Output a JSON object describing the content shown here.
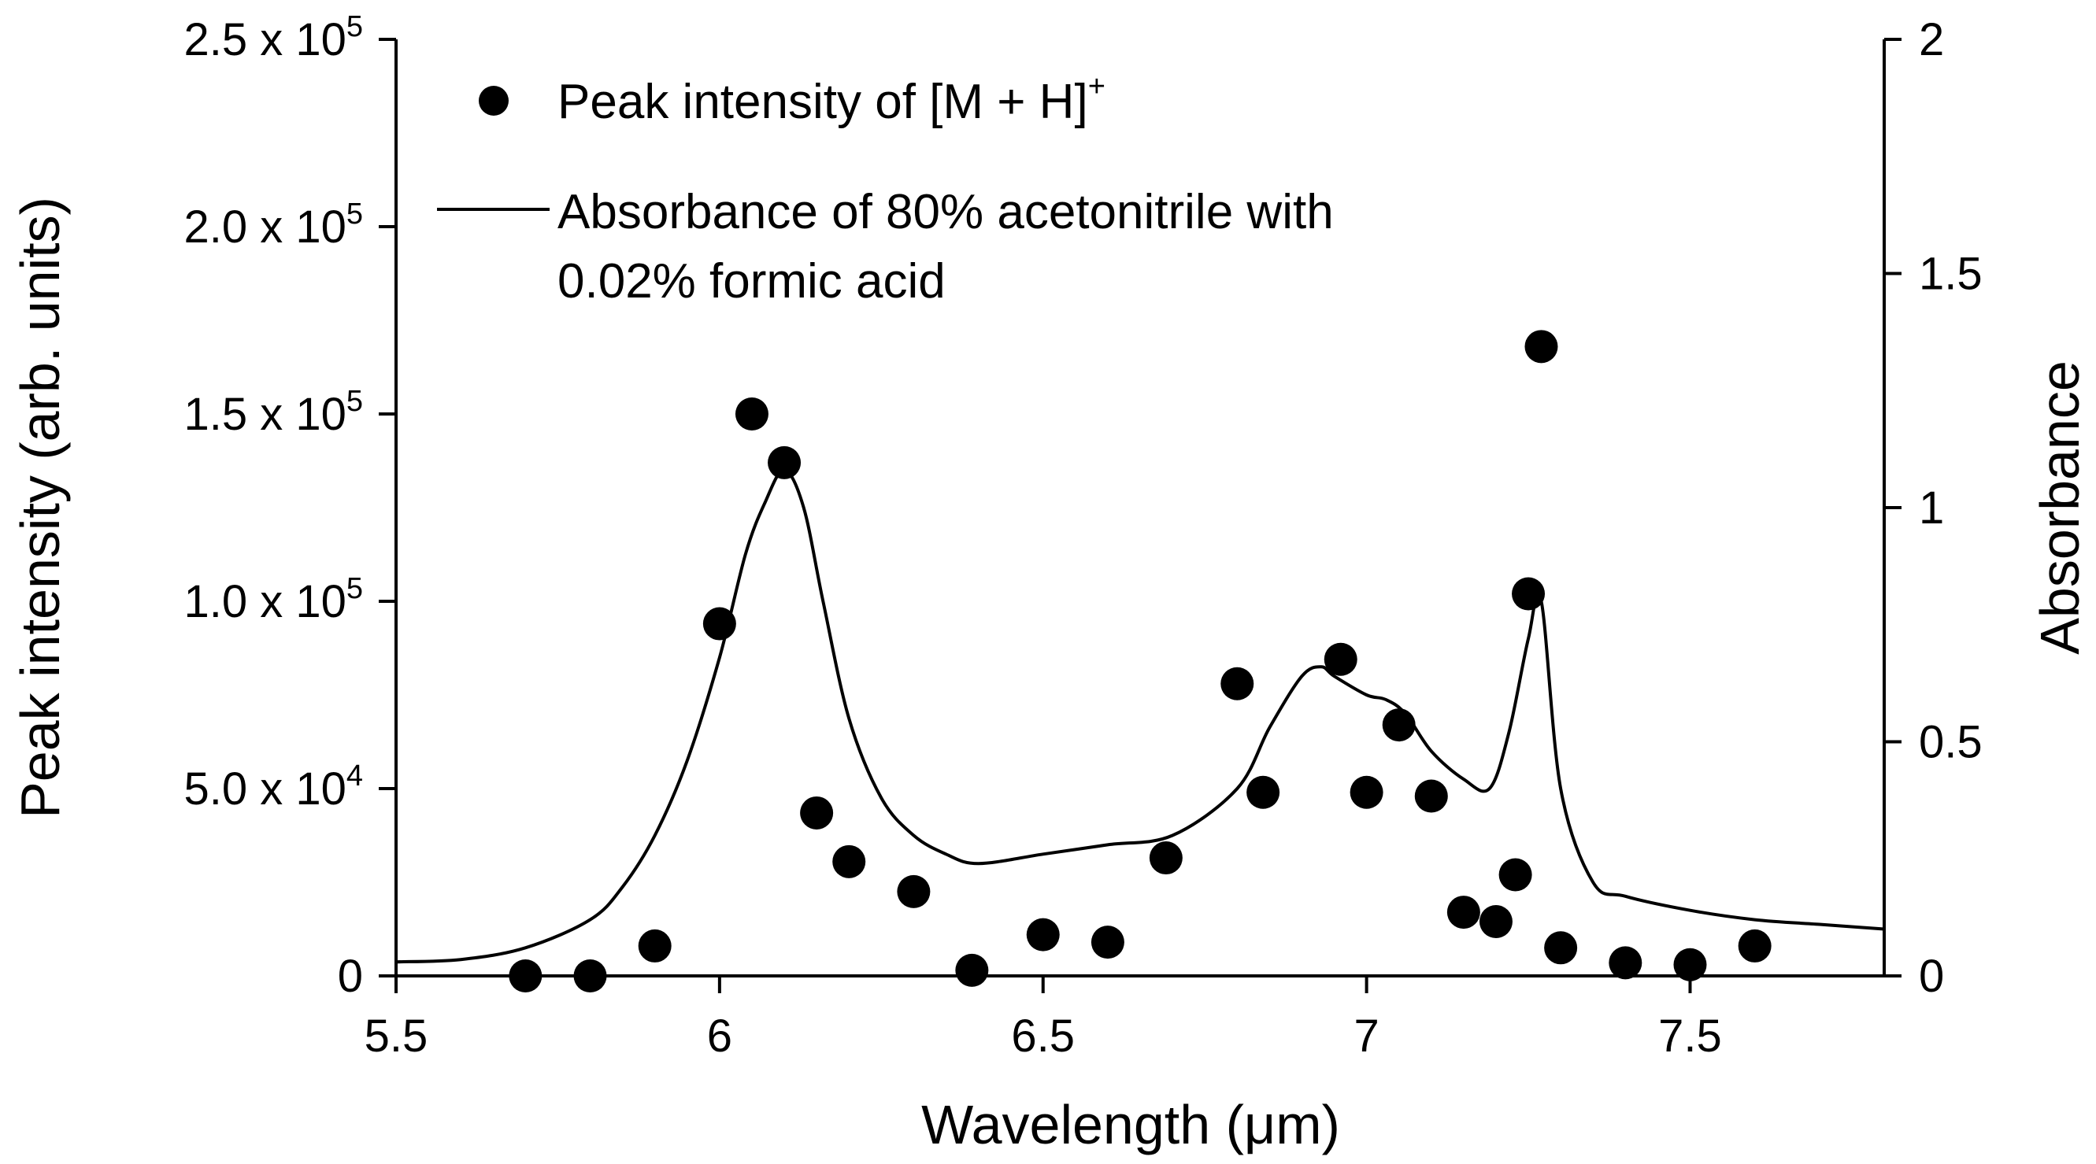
{
  "chart_data": {
    "type": "scatter+line",
    "xlabel": "Wavelength (μm)",
    "ylabel_left": "Peak intensity (arb. units)",
    "ylabel_right": "Absorbance",
    "xlim": [
      5.5,
      7.8
    ],
    "ylim_left": [
      0,
      250000
    ],
    "ylim_right": [
      0,
      2
    ],
    "x_ticks": [
      {
        "value": 5.5,
        "label": "5.5"
      },
      {
        "value": 6.0,
        "label": "6"
      },
      {
        "value": 6.5,
        "label": "6.5"
      },
      {
        "value": 7.0,
        "label": "7"
      },
      {
        "value": 7.5,
        "label": "7.5"
      }
    ],
    "y_left_ticks": [
      {
        "value": 0,
        "mant": "0",
        "exp": ""
      },
      {
        "value": 50000,
        "mant": "5.0 x 10",
        "exp": "4"
      },
      {
        "value": 100000,
        "mant": "1.0 x 10",
        "exp": "5"
      },
      {
        "value": 150000,
        "mant": "1.5 x 10",
        "exp": "5"
      },
      {
        "value": 200000,
        "mant": "2.0 x 10",
        "exp": "5"
      },
      {
        "value": 250000,
        "mant": "2.5 x 10",
        "exp": "5"
      }
    ],
    "y_right_ticks": [
      {
        "value": 0,
        "label": "0"
      },
      {
        "value": 0.5,
        "label": "0.5"
      },
      {
        "value": 1.0,
        "label": "1"
      },
      {
        "value": 1.5,
        "label": "1.5"
      },
      {
        "value": 2.0,
        "label": "2"
      }
    ],
    "legend": {
      "position": "top-left",
      "scatter_label": "Peak intensity of [M + H]",
      "scatter_label_sup": "+",
      "line_label_line1": "Absorbance of 80% acetonitrile with",
      "line_label_line2": "0.02% formic acid"
    },
    "series": [
      {
        "name": "Peak intensity of [M + H]+",
        "kind": "scatter",
        "axis": "left",
        "x": [
          5.7,
          5.8,
          5.9,
          6.0,
          6.05,
          6.1,
          6.15,
          6.2,
          6.3,
          6.39,
          6.5,
          6.6,
          6.69,
          6.8,
          6.84,
          6.96,
          7.0,
          7.05,
          7.1,
          7.15,
          7.2,
          7.23,
          7.25,
          7.27,
          7.3,
          7.4,
          7.5,
          7.6
        ],
        "y": [
          0,
          0,
          8000,
          94000,
          150000,
          137000,
          43500,
          30500,
          22500,
          1500,
          11000,
          9000,
          31500,
          78000,
          49000,
          84500,
          49000,
          67000,
          48000,
          17000,
          14500,
          27000,
          102000,
          168000,
          7500,
          3500,
          3000,
          8000
        ]
      },
      {
        "name": "Absorbance of 80% acetonitrile with 0.02% formic acid",
        "kind": "line",
        "axis": "right",
        "x": [
          5.5,
          5.6,
          5.7,
          5.8,
          5.85,
          5.9,
          5.95,
          6.0,
          6.04,
          6.07,
          6.1,
          6.13,
          6.16,
          6.2,
          6.25,
          6.3,
          6.35,
          6.4,
          6.5,
          6.6,
          6.7,
          6.8,
          6.85,
          6.9,
          6.93,
          6.95,
          7.0,
          7.03,
          7.06,
          7.1,
          7.15,
          7.19,
          7.22,
          7.25,
          7.27,
          7.3,
          7.35,
          7.4,
          7.5,
          7.6,
          7.7,
          7.8
        ],
        "y": [
          0.03,
          0.035,
          0.06,
          0.12,
          0.19,
          0.3,
          0.46,
          0.68,
          0.9,
          1.01,
          1.08,
          1.0,
          0.8,
          0.55,
          0.38,
          0.3,
          0.26,
          0.24,
          0.26,
          0.28,
          0.3,
          0.4,
          0.53,
          0.64,
          0.66,
          0.64,
          0.6,
          0.59,
          0.56,
          0.48,
          0.42,
          0.4,
          0.52,
          0.72,
          0.8,
          0.4,
          0.2,
          0.17,
          0.14,
          0.12,
          0.11,
          0.1
        ]
      }
    ]
  }
}
